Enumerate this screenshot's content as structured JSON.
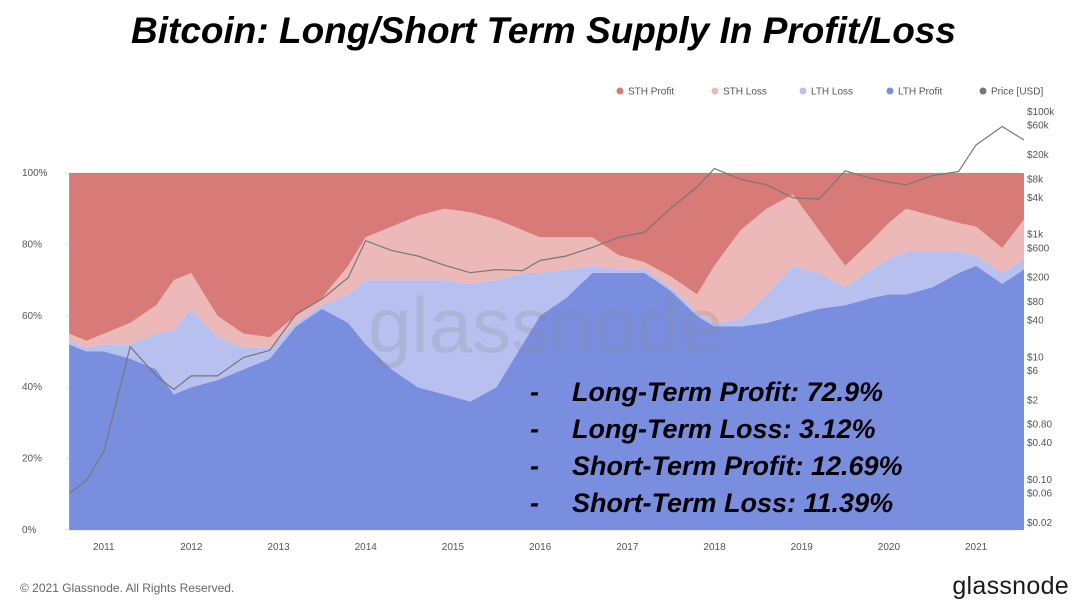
{
  "title": "Bitcoin: Long/Short Term Supply In Profit/Loss",
  "watermark": "glassnode",
  "footer": {
    "copyright": "© 2021 Glassnode. All Rights Reserved.",
    "brand": "glassnode"
  },
  "stats": [
    {
      "dash": "-",
      "text": "Long-Term Profit: 72.9%"
    },
    {
      "dash": "-",
      "text": "Long-Term Loss: 3.12%"
    },
    {
      "dash": "-",
      "text": "Short-Term Profit: 12.69%"
    },
    {
      "dash": "-",
      "text": "Short-Term Loss: 11.39%"
    }
  ],
  "chart_data": {
    "type": "area",
    "stacked": true,
    "legend_position": "top-right",
    "legend": [
      {
        "name": "STH Profit",
        "color": "#d87a78"
      },
      {
        "name": "STH Loss",
        "color": "#ecb8b8"
      },
      {
        "name": "LTH Loss",
        "color": "#b7c0ee"
      },
      {
        "name": "LTH Profit",
        "color": "#7a8ee0"
      },
      {
        "name": "Price [USD]",
        "color": "#777777"
      }
    ],
    "x": [
      2010.6,
      2010.8,
      2011.0,
      2011.3,
      2011.6,
      2011.8,
      2012.0,
      2012.3,
      2012.6,
      2012.9,
      2013.2,
      2013.5,
      2013.8,
      2014.0,
      2014.3,
      2014.6,
      2014.9,
      2015.2,
      2015.5,
      2015.8,
      2016.0,
      2016.3,
      2016.6,
      2016.9,
      2017.2,
      2017.5,
      2017.8,
      2018.0,
      2018.3,
      2018.6,
      2018.9,
      2019.2,
      2019.5,
      2019.8,
      2020.0,
      2020.2,
      2020.5,
      2020.8,
      2021.0,
      2021.3,
      2021.55
    ],
    "x_ticks": [
      "2011",
      "2012",
      "2013",
      "2014",
      "2015",
      "2016",
      "2017",
      "2018",
      "2019",
      "2020",
      "2021"
    ],
    "y_left_ticks": [
      "0%",
      "20%",
      "40%",
      "60%",
      "80%",
      "100%"
    ],
    "y_left_range": [
      0,
      100
    ],
    "y_right_ticks": [
      "$100k",
      "$60k",
      "$20k",
      "$8k",
      "$4k",
      "$1k",
      "$600",
      "$200",
      "$80",
      "$40",
      "$10",
      "$6",
      "$2",
      "$0.80",
      "$0.40",
      "$0.10",
      "$0.06",
      "$0.02"
    ],
    "y_right_range": [
      0.02,
      100000
    ],
    "series": [
      {
        "name": "LTH Profit",
        "values": [
          52,
          50,
          50,
          48,
          45,
          38,
          40,
          42,
          45,
          48,
          57,
          62,
          58,
          52,
          45,
          40,
          38,
          36,
          40,
          52,
          60,
          65,
          72,
          72,
          72,
          67,
          60,
          57,
          57,
          58,
          60,
          62,
          63,
          65,
          66,
          66,
          68,
          72,
          74,
          69,
          73
        ]
      },
      {
        "name": "LTH Loss",
        "values": [
          1,
          1,
          2,
          4,
          10,
          18,
          22,
          12,
          6,
          3,
          1,
          1,
          8,
          18,
          25,
          30,
          32,
          33,
          30,
          20,
          12,
          8,
          2,
          1,
          1,
          1,
          1,
          1,
          2,
          8,
          14,
          10,
          5,
          8,
          10,
          12,
          10,
          6,
          3,
          3,
          3
        ]
      },
      {
        "name": "STH Loss",
        "values": [
          2,
          2,
          3,
          6,
          8,
          14,
          10,
          6,
          4,
          3,
          2,
          2,
          8,
          12,
          15,
          18,
          20,
          20,
          17,
          12,
          10,
          9,
          8,
          4,
          2,
          3,
          5,
          16,
          25,
          24,
          20,
          12,
          6,
          8,
          10,
          12,
          10,
          8,
          8,
          7,
          11
        ]
      },
      {
        "name": "STH Profit",
        "values": [
          45,
          47,
          45,
          42,
          37,
          30,
          28,
          40,
          45,
          46,
          40,
          35,
          26,
          18,
          15,
          12,
          10,
          11,
          13,
          16,
          18,
          18,
          18,
          23,
          25,
          29,
          34,
          26,
          16,
          10,
          6,
          16,
          26,
          19,
          14,
          10,
          12,
          14,
          15,
          21,
          13
        ]
      },
      {
        "name": "Price [USD]",
        "axis": "right",
        "values": [
          0.06,
          0.1,
          0.3,
          15,
          5,
          3,
          5,
          5,
          10,
          13,
          50,
          90,
          200,
          800,
          550,
          450,
          320,
          240,
          270,
          260,
          380,
          450,
          620,
          900,
          1100,
          2700,
          6000,
          12000,
          8000,
          6500,
          4000,
          3800,
          11000,
          8200,
          7200,
          6500,
          9200,
          10700,
          29000,
          58000,
          35000
        ]
      }
    ]
  }
}
